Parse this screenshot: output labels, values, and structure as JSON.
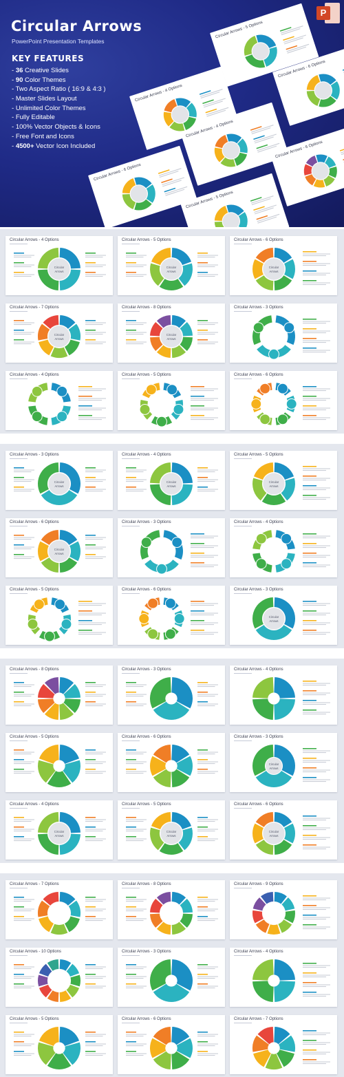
{
  "hero": {
    "title": "Circular Arrows",
    "subtitle": "PowerPoint Presentation Templates",
    "key_features_title": "KEY FEATURES",
    "features": [
      {
        "bold": "36",
        "text": " Creative Slides"
      },
      {
        "bold": "90",
        "text": " Color Themes"
      },
      {
        "bold": "",
        "text": "Two Aspect Ratio ( 16:9 & 4:3 )"
      },
      {
        "bold": "",
        "text": "Master Slides Layout"
      },
      {
        "bold": "",
        "text": "Unlimited Color Themes"
      },
      {
        "bold": "",
        "text": "Fully Editable"
      },
      {
        "bold": "",
        "text": "100% Vector Objects & Icons"
      },
      {
        "bold": "",
        "text": "Free Font and Icons"
      },
      {
        "bold": "4500+",
        "text": " Vector Icon Included"
      }
    ],
    "feature_prefix": "- ",
    "ppt_letter": "P",
    "preview_titles": [
      "Circular Arrows - 4 Options",
      "Circular Arrows - 5 Options",
      "Circular Arrows - 6 Options",
      "Circular Arrows - 4 Options",
      "Circular Arrows - 6 Options",
      "Circular Arrows - 5 Options",
      "Circular Arrows - 6 Options"
    ]
  },
  "center_label": [
    "Circular",
    "Arrows"
  ],
  "panels": [
    {
      "cards": [
        {
          "title": "Circular Arrows - 4 Options",
          "n": 4,
          "style": "ring",
          "center": true
        },
        {
          "title": "Circular Arrows - 5 Options",
          "n": 5,
          "style": "ring",
          "center": true
        },
        {
          "title": "Circular Arrows - 6 Options",
          "n": 6,
          "style": "ring",
          "center": true
        },
        {
          "title": "Circular Arrows - 7 Options",
          "n": 7,
          "style": "ring",
          "center": true
        },
        {
          "title": "Circular Arrows - 8 Options",
          "n": 8,
          "style": "ring",
          "center": true
        },
        {
          "title": "Circular Arrows - 3 Options",
          "n": 3,
          "style": "thin",
          "center": false
        },
        {
          "title": "Circular Arrows - 4 Options",
          "n": 4,
          "style": "thin",
          "center": false
        },
        {
          "title": "Circular Arrows - 5 Options",
          "n": 5,
          "style": "thin",
          "center": false
        },
        {
          "title": "Circular Arrows - 6 Options",
          "n": 6,
          "style": "thin",
          "center": false
        }
      ]
    },
    {
      "cards": [
        {
          "title": "Circular Arrows - 3 Options",
          "n": 3,
          "style": "ring",
          "center": true
        },
        {
          "title": "Circular Arrows - 4 Options",
          "n": 4,
          "style": "ring",
          "center": true
        },
        {
          "title": "Circular Arrows - 5 Options",
          "n": 5,
          "style": "ring",
          "center": true
        },
        {
          "title": "Circular Arrows - 6 Options",
          "n": 6,
          "style": "ring",
          "center": true
        },
        {
          "title": "Circular Arrows - 3 Options",
          "n": 3,
          "style": "thin",
          "center": false
        },
        {
          "title": "Circular Arrows - 4 Options",
          "n": 4,
          "style": "thin",
          "center": false
        },
        {
          "title": "Circular Arrows - 5 Options",
          "n": 5,
          "style": "thin",
          "center": false
        },
        {
          "title": "Circular Arrows - 6 Options",
          "n": 6,
          "style": "thin",
          "center": false
        },
        {
          "title": "Circular Arrows - 3 Options",
          "n": 3,
          "style": "ring",
          "center": true
        }
      ]
    },
    {
      "cards": [
        {
          "title": "Circular Arrows - 8 Options",
          "n": 8,
          "style": "pie",
          "center": false
        },
        {
          "title": "Circular Arrows - 3 Options",
          "n": 3,
          "style": "pie",
          "center": false
        },
        {
          "title": "Circular Arrows - 4 Options",
          "n": 4,
          "style": "pie",
          "center": false
        },
        {
          "title": "Circular Arrows - 5 Options",
          "n": 5,
          "style": "pie",
          "center": false
        },
        {
          "title": "Circular Arrows - 6 Options",
          "n": 6,
          "style": "pie",
          "center": false
        },
        {
          "title": "Circular Arrows - 3 Options",
          "n": 3,
          "style": "pie",
          "center": true
        },
        {
          "title": "Circular Arrows - 4 Options",
          "n": 4,
          "style": "ring",
          "center": true
        },
        {
          "title": "Circular Arrows - 5 Options",
          "n": 5,
          "style": "ring",
          "center": true
        },
        {
          "title": "Circular Arrows - 6 Options",
          "n": 6,
          "style": "ring",
          "center": true
        }
      ]
    },
    {
      "cards": [
        {
          "title": "Circular Arrows - 7 Options",
          "n": 7,
          "style": "ring",
          "center": false
        },
        {
          "title": "Circular Arrows - 8 Options",
          "n": 8,
          "style": "ring",
          "center": false
        },
        {
          "title": "Circular Arrows - 9 Options",
          "n": 9,
          "style": "ring",
          "center": false
        },
        {
          "title": "Circular Arrows - 10 Options",
          "n": 10,
          "style": "ring",
          "center": false
        },
        {
          "title": "Circular Arrows - 3 Options",
          "n": 3,
          "style": "pie",
          "center": false
        },
        {
          "title": "Circular Arrows - 4 Options",
          "n": 4,
          "style": "pie",
          "center": false
        },
        {
          "title": "Circular Arrows - 5 Options",
          "n": 5,
          "style": "pie",
          "center": false
        },
        {
          "title": "Circular Arrows - 6 Options",
          "n": 6,
          "style": "pie",
          "center": false
        },
        {
          "title": "Circular Arrows - 7 Options",
          "n": 7,
          "style": "pie",
          "center": false
        }
      ]
    }
  ],
  "colors": [
    "#1b8fc4",
    "#2bb3c0",
    "#3fae49",
    "#8dc63f",
    "#f6b21b",
    "#f07e26",
    "#e8463c",
    "#7b4fa0",
    "#3a5fb0",
    "#2fa58e"
  ],
  "center_fill": "#e2e4e8",
  "text_lines_color": "#c9cdd6",
  "label_colors": [
    "#1b8fc4",
    "#3fae49",
    "#f6b21b",
    "#f07e26"
  ]
}
